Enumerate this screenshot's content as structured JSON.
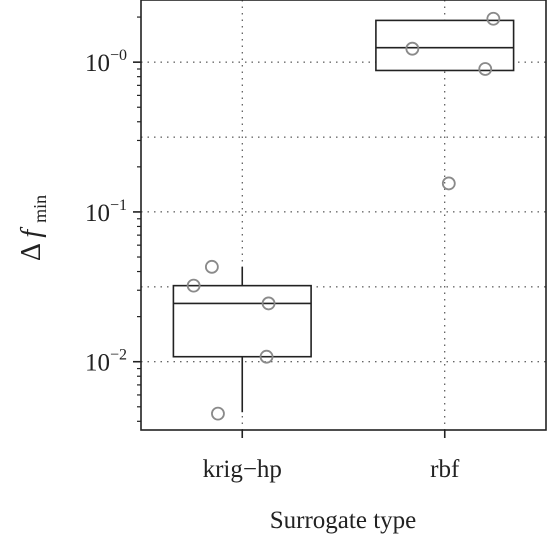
{
  "chart_data": {
    "type": "boxplot",
    "xlabel": "Surrogate type",
    "ylabel": {
      "symbol": "Δ",
      "variable": "f",
      "subscript": "min"
    },
    "y_scale": "log10",
    "ylim": [
      0.0035,
      2.6
    ],
    "y_ticks": [
      {
        "value": 0.01,
        "base": "10",
        "exp": "−2"
      },
      {
        "value": 0.1,
        "base": "10",
        "exp": "−1"
      },
      {
        "value": 1,
        "base": "10",
        "exp": "−0"
      }
    ],
    "y_minor_gridlines": [
      0.0316,
      0.316
    ],
    "grid": "dotted",
    "categories": [
      "krig−hp",
      "rbf"
    ],
    "boxes": [
      {
        "category": "krig−hp",
        "q1": 0.0108,
        "median": 0.0245,
        "q3": 0.0322,
        "whisker_low": 0.0046,
        "whisker_high": 0.043,
        "points": [
          {
            "x_offset": -0.24,
            "y": 0.0322
          },
          {
            "x_offset": -0.15,
            "y": 0.043
          },
          {
            "x_offset": 0.13,
            "y": 0.0245
          },
          {
            "x_offset": 0.12,
            "y": 0.0108
          },
          {
            "x_offset": -0.12,
            "y": 0.0045
          }
        ]
      },
      {
        "category": "rbf",
        "q1": 0.88,
        "median": 1.25,
        "q3": 1.9,
        "whisker_low": 0.88,
        "whisker_high": 1.9,
        "points": [
          {
            "x_offset": -0.16,
            "y": 1.23
          },
          {
            "x_offset": 0.24,
            "y": 1.95
          },
          {
            "x_offset": 0.2,
            "y": 0.9
          },
          {
            "x_offset": 0.02,
            "y": 0.155
          }
        ]
      }
    ]
  }
}
